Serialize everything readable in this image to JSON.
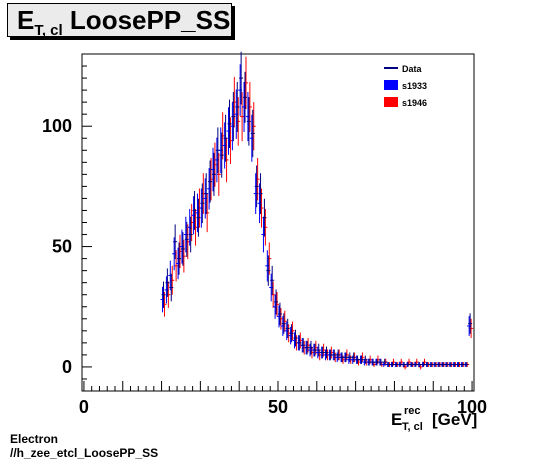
{
  "header": {
    "title_main": "E",
    "title_sub": "T, cl",
    "title_rest": " LoosePP_SS"
  },
  "footer": {
    "line1": "Electron",
    "line2": "//h_zee_etcl_LoosePP_SS"
  },
  "chart_data": {
    "type": "scatter",
    "title": "E_T, cl LoosePP_SS",
    "xlabel": "E_T, cl^rec [GeV]",
    "xlabel_main": "E",
    "xlabel_sup": "rec",
    "xlabel_sub": "T, cl",
    "xlabel_unit": "[GeV]",
    "ylabel": "",
    "xlim": [
      -0.5,
      100.5
    ],
    "ylim": [
      -10,
      130
    ],
    "x_ticks": [
      0,
      50,
      100
    ],
    "y_ticks": [
      0,
      50,
      100
    ],
    "grid": false,
    "legend_position": "top-right",
    "colors": {
      "Data": "#000080",
      "s1933": "#0000ff",
      "s1946": "#ff0000"
    },
    "series": [
      {
        "name": "Data",
        "x": [
          20.5,
          21.5,
          22.5,
          23.5,
          24.5,
          25.5,
          26.5,
          27.5,
          28.5,
          29.5,
          30.5,
          31.5,
          32.5,
          33.5,
          34.5,
          35.5,
          36.5,
          37.5,
          38.5,
          39.5,
          40.5,
          41.5,
          42.5,
          43.5,
          44.5,
          45.5,
          46.5,
          47.5,
          48.5,
          49.5,
          50.5,
          51.5,
          52.5,
          53.5,
          54.5,
          55.5,
          56.5,
          57.5,
          58.5,
          59.5,
          60.5,
          61.5,
          62.5,
          63.5,
          64.5,
          65.5,
          66.5,
          67.5,
          68.5,
          69.5,
          70.5,
          71.5,
          72.5,
          73.5,
          74.5,
          75.5,
          76.5,
          77.5,
          78.5,
          79.5,
          80.5,
          81.5,
          82.5,
          83.5,
          84.5,
          85.5,
          86.5,
          87.5,
          88.5,
          89.5,
          90.5,
          91.5,
          92.5,
          93.5,
          94.5,
          95.5,
          96.5,
          97.5,
          98.5,
          99.5
        ],
        "y": [
          30,
          35,
          33,
          52,
          45,
          49,
          53,
          55,
          65,
          62,
          68,
          72,
          77,
          80,
          90,
          88,
          95,
          101,
          104,
          108,
          120,
          112,
          102,
          97,
          75,
          72,
          62,
          40,
          36,
          27,
          22,
          18,
          16,
          14,
          12,
          10,
          9,
          8,
          8,
          7,
          7,
          6,
          6,
          5,
          5,
          5,
          4,
          4,
          4,
          4,
          3,
          3,
          3,
          2,
          2,
          2,
          2,
          2,
          1,
          1,
          1,
          1,
          1,
          1,
          1,
          1,
          1,
          1,
          1,
          1,
          1,
          1,
          1,
          1,
          1,
          1,
          1,
          1,
          1,
          18
        ]
      },
      {
        "name": "s1933",
        "x": [
          20.5,
          21.5,
          22.5,
          23.5,
          24.5,
          25.5,
          26.5,
          27.5,
          28.5,
          29.5,
          30.5,
          31.5,
          32.5,
          33.5,
          34.5,
          35.5,
          36.5,
          37.5,
          38.5,
          39.5,
          40.5,
          41.5,
          42.5,
          43.5,
          44.5,
          45.5,
          46.5,
          47.5,
          48.5,
          49.5,
          50.5,
          51.5,
          52.5,
          53.5,
          54.5,
          55.5,
          56.5,
          57.5,
          58.5,
          59.5,
          60.5,
          61.5,
          62.5,
          63.5,
          64.5,
          65.5,
          66.5,
          67.5,
          68.5,
          69.5,
          70.5,
          71.5,
          72.5,
          73.5,
          74.5,
          75.5,
          76.5,
          77.5,
          78.5,
          79.5,
          80.5,
          81.5,
          82.5,
          83.5,
          84.5,
          85.5,
          86.5,
          87.5,
          88.5,
          89.5,
          90.5,
          91.5,
          92.5,
          93.5,
          94.5,
          95.5,
          96.5,
          97.5,
          98.5,
          99.5
        ],
        "y": [
          28,
          32,
          38,
          47,
          43,
          50,
          55,
          58,
          63,
          64,
          66,
          70,
          74,
          82,
          86,
          90,
          92,
          98,
          100,
          105,
          115,
          108,
          104,
          95,
          72,
          68,
          55,
          42,
          33,
          25,
          21,
          17,
          15,
          13,
          11,
          10,
          9,
          8,
          7,
          7,
          6,
          6,
          5,
          5,
          5,
          4,
          4,
          4,
          3,
          3,
          3,
          3,
          2,
          2,
          2,
          2,
          2,
          1,
          1,
          1,
          1,
          1,
          1,
          1,
          1,
          1,
          1,
          1,
          1,
          1,
          1,
          1,
          1,
          1,
          1,
          1,
          1,
          1,
          1,
          17
        ]
      },
      {
        "name": "s1946",
        "x": [
          20.5,
          21.5,
          22.5,
          23.5,
          24.5,
          25.5,
          26.5,
          27.5,
          28.5,
          29.5,
          30.5,
          31.5,
          32.5,
          33.5,
          34.5,
          35.5,
          36.5,
          37.5,
          38.5,
          39.5,
          40.5,
          41.5,
          42.5,
          43.5,
          44.5,
          45.5,
          46.5,
          47.5,
          48.5,
          49.5,
          50.5,
          51.5,
          52.5,
          53.5,
          54.5,
          55.5,
          56.5,
          57.5,
          58.5,
          59.5,
          60.5,
          61.5,
          62.5,
          63.5,
          64.5,
          65.5,
          66.5,
          67.5,
          68.5,
          69.5,
          70.5,
          71.5,
          72.5,
          73.5,
          74.5,
          75.5,
          76.5,
          77.5,
          78.5,
          79.5,
          80.5,
          81.5,
          82.5,
          83.5,
          84.5,
          85.5,
          86.5,
          87.5,
          88.5,
          89.5,
          90.5,
          91.5,
          92.5,
          93.5,
          94.5,
          95.5,
          96.5,
          97.5,
          98.5,
          99.5
        ],
        "y": [
          26,
          30,
          36,
          42,
          48,
          46,
          52,
          60,
          58,
          66,
          72,
          64,
          78,
          84,
          80,
          96,
          86,
          94,
          110,
          102,
          104,
          118,
          108,
          100,
          78,
          66,
          58,
          45,
          30,
          26,
          20,
          19,
          14,
          15,
          10,
          11,
          8,
          9,
          6,
          8,
          5,
          7,
          5,
          6,
          4,
          5,
          3,
          5,
          3,
          4,
          2,
          4,
          2,
          3,
          1,
          3,
          1,
          2,
          1,
          2,
          1,
          2,
          0,
          2,
          1,
          2,
          0,
          2,
          1,
          1,
          1,
          1,
          1,
          1,
          1,
          1,
          1,
          1,
          1,
          16
        ]
      }
    ]
  }
}
